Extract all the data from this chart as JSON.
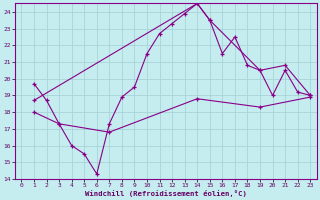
{
  "xlabel": "Windchill (Refroidissement éolien,°C)",
  "bg_color": "#c5ecee",
  "grid_color": "#a8d4d8",
  "line_color": "#880088",
  "ylim": [
    14,
    24.5
  ],
  "xlim": [
    -0.5,
    23.5
  ],
  "yticks": [
    14,
    15,
    16,
    17,
    18,
    19,
    20,
    21,
    22,
    23,
    24
  ],
  "xticks": [
    0,
    1,
    2,
    3,
    4,
    5,
    6,
    7,
    8,
    9,
    10,
    11,
    12,
    13,
    14,
    15,
    16,
    17,
    18,
    19,
    20,
    21,
    22,
    23
  ],
  "line_zigzag_x": [
    1,
    2,
    3,
    4,
    5,
    6,
    7,
    8,
    9,
    10,
    11,
    12,
    13,
    14,
    15,
    16,
    17,
    18,
    19,
    20,
    21,
    22,
    23
  ],
  "line_zigzag_y": [
    19.7,
    18.7,
    17.3,
    16.0,
    15.5,
    14.3,
    17.3,
    18.9,
    19.5,
    21.5,
    22.7,
    23.3,
    23.9,
    24.5,
    23.5,
    21.5,
    22.5,
    20.8,
    20.5,
    19.0,
    20.5,
    19.2,
    19.0
  ],
  "line_upper_x": [
    1,
    14,
    15,
    19,
    21,
    23
  ],
  "line_upper_y": [
    18.7,
    24.5,
    23.5,
    20.5,
    20.8,
    19.0
  ],
  "line_lower_x": [
    1,
    3,
    7,
    14,
    19,
    23
  ],
  "line_lower_y": [
    18.0,
    17.3,
    16.8,
    18.8,
    18.3,
    18.9
  ],
  "font_color": "#660066",
  "lw": 0.8,
  "ms": 3.0
}
